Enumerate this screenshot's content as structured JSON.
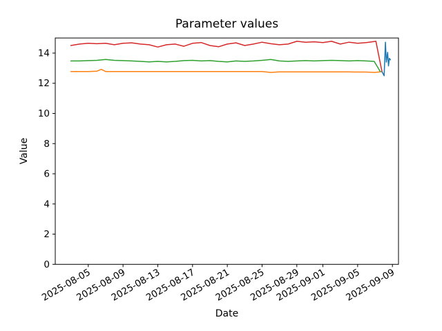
{
  "figure": {
    "background": "#ffffff"
  },
  "chart_data": {
    "type": "line",
    "title": "Parameter values",
    "xlabel": "Date",
    "ylabel": "Value",
    "grid": false,
    "legend": "none",
    "axis_color": "#000000",
    "text_color": "#000000",
    "ylim": [
      0,
      15
    ],
    "x_day_zero": "2025-08-05",
    "xlim_days": [
      -3.8,
      35.7
    ],
    "yticks": [
      0,
      2,
      4,
      6,
      8,
      10,
      12,
      14
    ],
    "xticks": [
      {
        "day": 0,
        "label": "2025-08-05"
      },
      {
        "day": 4,
        "label": "2025-08-09"
      },
      {
        "day": 8,
        "label": "2025-08-13"
      },
      {
        "day": 12,
        "label": "2025-08-17"
      },
      {
        "day": 16,
        "label": "2025-08-21"
      },
      {
        "day": 20,
        "label": "2025-08-25"
      },
      {
        "day": 24,
        "label": "2025-08-29"
      },
      {
        "day": 27,
        "label": "2025-09-01"
      },
      {
        "day": 31,
        "label": "2025-09-05"
      },
      {
        "day": 35,
        "label": "2025-09-09"
      }
    ],
    "series": [
      {
        "name": "series-orange",
        "color": "#ff7f0e",
        "x": [
          -2,
          -1,
          0,
          1,
          1.5,
          2,
          3,
          4,
          6,
          8,
          10,
          12,
          14,
          16,
          18,
          20,
          21,
          22,
          24,
          26,
          28,
          30,
          32,
          33,
          33.8
        ],
        "y": [
          12.78,
          12.78,
          12.78,
          12.8,
          12.92,
          12.78,
          12.78,
          12.78,
          12.78,
          12.78,
          12.78,
          12.78,
          12.78,
          12.78,
          12.78,
          12.78,
          12.72,
          12.75,
          12.75,
          12.75,
          12.75,
          12.75,
          12.74,
          12.72,
          12.77
        ]
      },
      {
        "name": "series-green",
        "color": "#2ca02c",
        "x": [
          -2,
          -1,
          0,
          1,
          2,
          3,
          4,
          5,
          6,
          7,
          8,
          9,
          10,
          11,
          12,
          13,
          14,
          15,
          16,
          17,
          18,
          19,
          20,
          21,
          22,
          23,
          24,
          25,
          26,
          27,
          28,
          29,
          30,
          31,
          32,
          32.9,
          33.6
        ],
        "y": [
          13.48,
          13.48,
          13.5,
          13.52,
          13.58,
          13.52,
          13.5,
          13.48,
          13.45,
          13.42,
          13.45,
          13.42,
          13.45,
          13.5,
          13.52,
          13.48,
          13.5,
          13.45,
          13.42,
          13.48,
          13.45,
          13.48,
          13.52,
          13.58,
          13.48,
          13.45,
          13.48,
          13.5,
          13.48,
          13.5,
          13.52,
          13.5,
          13.48,
          13.5,
          13.48,
          13.45,
          12.78
        ]
      },
      {
        "name": "series-red",
        "color": "#d62728",
        "x": [
          -2,
          -1,
          0,
          1,
          2,
          3,
          4,
          5,
          6,
          7,
          8,
          9,
          10,
          11,
          12,
          13,
          14,
          15,
          16,
          17,
          18,
          19,
          20,
          21,
          22,
          23,
          24,
          25,
          26,
          27,
          28,
          29,
          30,
          31,
          32,
          33.1,
          33.8
        ],
        "y": [
          14.5,
          14.6,
          14.65,
          14.62,
          14.65,
          14.55,
          14.65,
          14.68,
          14.6,
          14.55,
          14.4,
          14.55,
          14.6,
          14.45,
          14.65,
          14.7,
          14.5,
          14.42,
          14.6,
          14.68,
          14.5,
          14.6,
          14.72,
          14.62,
          14.55,
          14.6,
          14.78,
          14.72,
          14.75,
          14.7,
          14.78,
          14.6,
          14.72,
          14.65,
          14.7,
          14.78,
          12.77
        ]
      },
      {
        "name": "series-blue",
        "color": "#1f77b4",
        "x": [
          33.8,
          34.05,
          34.2,
          34.3,
          34.45,
          34.55,
          34.65,
          34.78
        ],
        "y": [
          12.77,
          12.5,
          14.72,
          13.4,
          14.05,
          13.15,
          13.65,
          13.55
        ]
      }
    ]
  }
}
